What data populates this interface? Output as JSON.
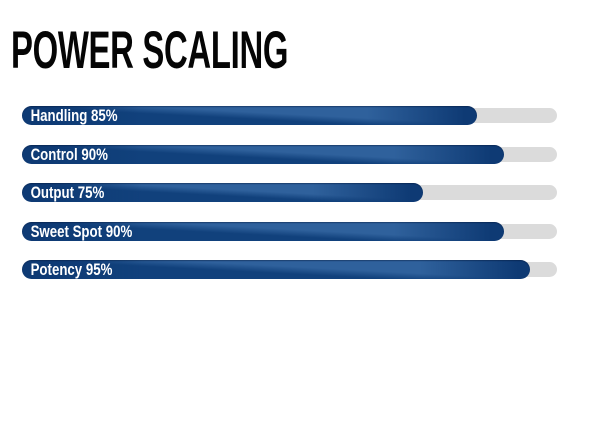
{
  "title": "POWER SCALING",
  "chart_data": {
    "type": "bar",
    "orientation": "horizontal",
    "title": "POWER SCALING",
    "categories": [
      "Handling",
      "Control",
      "Output",
      "Sweet Spot",
      "Potency"
    ],
    "values": [
      85,
      90,
      75,
      90,
      95
    ],
    "labels": [
      "Handling 85%",
      "Control 90%",
      "Output 75%",
      "Sweet Spot 90%",
      "Potency 95%"
    ],
    "xlim": [
      0,
      100
    ],
    "unit": "%",
    "grid": false,
    "legend": "none",
    "colors": {
      "bar_fill_dark": "#0e3a74",
      "bar_fill_sheen": "#2f619c",
      "track": "#dbdbdb",
      "title_text": "#050505",
      "bar_label_text": "#ffffff",
      "background": "#ffffff"
    }
  }
}
